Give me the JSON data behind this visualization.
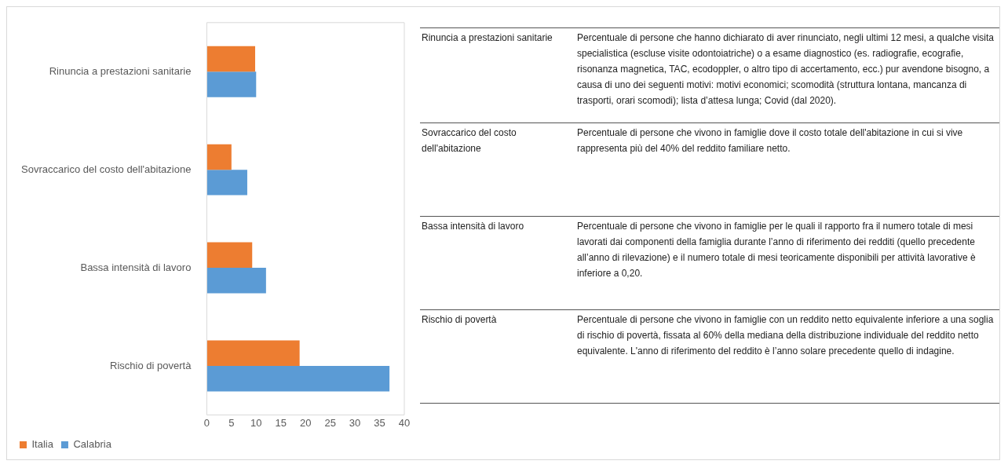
{
  "chart_data": [
    {
      "type": "bar",
      "orientation": "horizontal",
      "categories": [
        "Rinuncia a prestazioni sanitarie",
        "Sovraccarico del costo dell'abitazione",
        "Bassa intensità di lavoro",
        "Rischio di povertà"
      ],
      "series": [
        {
          "name": "Italia",
          "color": "#ed7d31",
          "values": [
            9.8,
            5,
            9.2,
            18.8
          ]
        },
        {
          "name": "Calabria",
          "color": "#5b9bd5",
          "values": [
            10,
            8.2,
            12,
            37
          ]
        }
      ],
      "xlim": [
        0,
        40
      ],
      "xticks": [
        0,
        5,
        10,
        15,
        20,
        25,
        30,
        35,
        40
      ],
      "grid": false,
      "legend": "bottom left"
    },
    {
      "type": "other",
      "annotations": [
        "Rinuncia a prestazioni sanitarie",
        "Percentuale di persone che hanno dichiarato di aver rinunciato, negli ultimi 12 mesi, a qualche visita specialistica (escluse visite odontoiatriche) o a esame diagnostico (es. radiografie, ecografie, risonanza magnetica, TAC, ecodoppler, o altro tipo di accertamento, ecc.) pur avendone bisogno, a causa di uno dei seguenti motivi: motivi economici; scomodità (struttura lontana, mancanza di trasporti, orari scomodi); lista d’attesa lunga; Covid (dal 2020).",
        "Sovraccarico del costo dell'abitazione",
        "Percentuale di persone che vivono in famiglie dove il costo totale dell'abitazione in cui si vive rappresenta più del 40% del reddito familiare netto.",
        "Bassa intensità di lavoro",
        "Percentuale di persone che vivono in famiglie per le quali il rapporto fra il numero totale di mesi lavorati dai componenti della famiglia durante l’anno di riferimento dei redditi (quello precedente all’anno di rilevazione) e il numero totale di mesi teoricamente disponibili per attività lavorative è inferiore a 0,20.",
        "Rischio di povertà",
        "Percentuale di persone che vivono in famiglie con un reddito netto equivalente inferiore a una soglia di rischio di povertà, fissata al 60% della mediana della distribuzione individuale del reddito netto equivalente. L'anno di riferimento del reddito è l’anno solare precedente quello di indagine."
      ]
    }
  ]
}
